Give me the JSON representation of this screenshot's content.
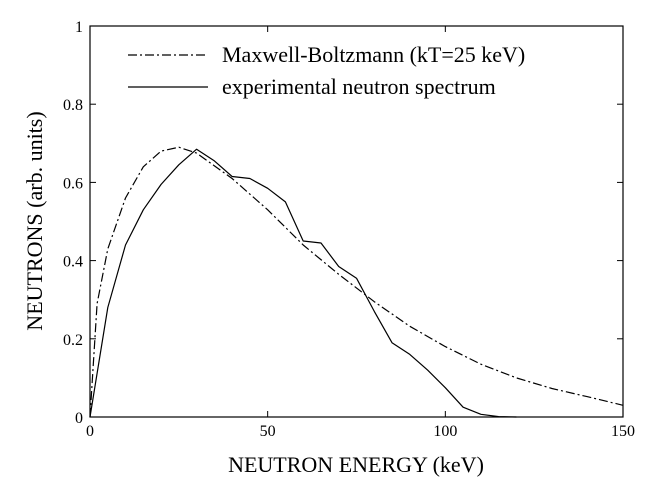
{
  "chart_data": {
    "type": "line",
    "title": "",
    "xlabel": "NEUTRON ENERGY (keV)",
    "ylabel": "NEUTRONS (arb. units)",
    "xlim": [
      0,
      150
    ],
    "ylim": [
      0,
      1
    ],
    "x_ticks": [
      0,
      50,
      100,
      150
    ],
    "x_tick_labels": [
      "0",
      "50",
      "100",
      "150"
    ],
    "y_ticks": [
      0,
      0.2,
      0.4,
      0.6,
      0.8,
      1
    ],
    "y_tick_labels": [
      "0",
      "0.2",
      "0.4",
      "0.6",
      "0.8",
      "1"
    ],
    "grid": false,
    "legend_position": "top-right",
    "series": [
      {
        "name": "Maxwell-Boltzmann (kT=25 keV)",
        "style": "dash-dot",
        "color": "#000000",
        "x": [
          0,
          2,
          5,
          10,
          15,
          20,
          25,
          30,
          40,
          50,
          60,
          70,
          80,
          90,
          100,
          110,
          120,
          130,
          140,
          150
        ],
        "y": [
          0,
          0.29,
          0.43,
          0.56,
          0.64,
          0.68,
          0.69,
          0.675,
          0.61,
          0.53,
          0.44,
          0.365,
          0.295,
          0.232,
          0.18,
          0.135,
          0.1,
          0.073,
          0.052,
          0.03
        ]
      },
      {
        "name": "experimental neutron spectrum",
        "style": "solid",
        "color": "#000000",
        "x": [
          0,
          5,
          10,
          15,
          20,
          25,
          30,
          35,
          40,
          45,
          50,
          55,
          60,
          65,
          70,
          75,
          80,
          85,
          90,
          95,
          100,
          105,
          110,
          115,
          120
        ],
        "y": [
          0,
          0.28,
          0.44,
          0.53,
          0.595,
          0.645,
          0.685,
          0.655,
          0.615,
          0.61,
          0.585,
          0.55,
          0.45,
          0.445,
          0.385,
          0.355,
          0.27,
          0.19,
          0.16,
          0.12,
          0.075,
          0.025,
          0.007,
          0.001,
          0
        ]
      }
    ]
  }
}
